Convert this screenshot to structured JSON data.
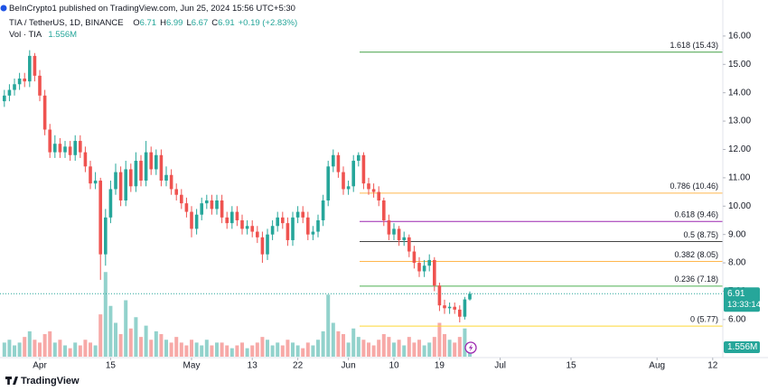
{
  "chart_data": {
    "type": "candlestick",
    "header": {
      "publisher": "BeInCrypto1 published on TradingView.com, Jun 25, 2024 15:56 UTC+5:30",
      "symbol": "TIA / TetherUS, 1D, BINANCE",
      "ohlc": [
        {
          "key": "O",
          "value": "6.71"
        },
        {
          "key": "H",
          "value": "6.99"
        },
        {
          "key": "L",
          "value": "6.67"
        },
        {
          "key": "C",
          "value": "6.91"
        }
      ],
      "change": "+0.19 (+2.83%)",
      "volume_title": "Vol · TIA",
      "volume_last": "1.556M"
    },
    "up_color": "#26a69a",
    "down_color": "#ef5350",
    "x": [
      -7,
      -6,
      -5,
      -4,
      -3,
      -2,
      -1,
      0,
      1,
      2,
      3,
      4,
      5,
      6,
      7,
      8,
      9,
      10,
      11,
      12,
      13,
      14,
      15,
      16,
      17,
      18,
      19,
      20,
      21,
      22,
      23,
      24,
      25,
      26,
      27,
      28,
      29,
      30,
      31,
      32,
      33,
      34,
      35,
      36,
      37,
      38,
      39,
      40,
      41,
      42,
      43,
      44,
      45,
      46,
      47,
      48,
      49,
      50,
      51,
      52,
      53,
      54,
      55,
      56,
      57,
      58,
      59,
      60,
      61,
      62,
      63,
      64,
      65,
      66,
      67,
      68,
      69,
      70,
      71,
      72,
      73,
      74,
      75,
      76,
      77,
      78,
      79,
      80,
      81,
      82,
      83,
      84,
      85
    ],
    "open": [
      13.7,
      13.9,
      14.1,
      14.3,
      14.5,
      14.4,
      15.3,
      14.6,
      13.9,
      12.7,
      11.9,
      12.2,
      11.9,
      12.1,
      11.8,
      12.3,
      11.9,
      11.4,
      10.8,
      10.9,
      8.3,
      9.6,
      10.6,
      11.2,
      10.2,
      11.3,
      10.7,
      11.6,
      10.9,
      11.9,
      11.3,
      11.8,
      10.9,
      11.1,
      10.6,
      10.4,
      10.1,
      9.8,
      9.2,
      9.7,
      10.1,
      10.2,
      9.9,
      10.2,
      9.6,
      9.4,
      9.8,
      9.5,
      9.2,
      9.3,
      9.1,
      8.9,
      8.3,
      9.0,
      9.3,
      9.6,
      9.4,
      8.8,
      9.6,
      9.8,
      9.6,
      9.0,
      9.1,
      9.5,
      10.2,
      11.4,
      11.8,
      11.2,
      10.6,
      10.7,
      11.6,
      11.8,
      10.8,
      10.6,
      10.5,
      10.2,
      9.5,
      9.0,
      9.2,
      8.8,
      8.9,
      8.4,
      8.0,
      7.7,
      7.9,
      8.1,
      7.2,
      6.5,
      6.4,
      6.45,
      6.35,
      6.1,
      6.71
    ],
    "high": [
      14.1,
      14.3,
      14.5,
      14.7,
      14.7,
      15.5,
      15.4,
      14.8,
      14.1,
      12.9,
      12.5,
      12.4,
      12.3,
      12.3,
      12.5,
      12.5,
      12.1,
      11.6,
      11.2,
      11.0,
      9.9,
      10.9,
      11.5,
      11.4,
      11.6,
      11.5,
      11.9,
      11.8,
      12.3,
      12.1,
      12.0,
      12.0,
      11.4,
      11.3,
      10.8,
      10.6,
      10.3,
      10.0,
      9.9,
      10.3,
      10.4,
      10.4,
      10.4,
      10.4,
      9.8,
      10.0,
      10.0,
      9.7,
      9.5,
      9.5,
      9.3,
      9.1,
      9.2,
      9.5,
      9.8,
      9.8,
      9.6,
      9.8,
      10.0,
      10.0,
      9.8,
      9.3,
      9.7,
      10.4,
      11.6,
      12.0,
      11.9,
      11.4,
      10.9,
      11.8,
      11.9,
      11.9,
      11.0,
      10.8,
      10.7,
      10.3,
      9.7,
      9.4,
      9.3,
      9.1,
      9.0,
      8.6,
      8.2,
      8.1,
      8.3,
      8.2,
      7.3,
      6.7,
      6.6,
      6.6,
      6.5,
      6.8,
      6.99
    ],
    "low": [
      13.5,
      13.7,
      13.9,
      14.1,
      14.2,
      14.2,
      14.4,
      13.7,
      12.5,
      11.7,
      11.7,
      11.7,
      11.7,
      11.6,
      11.6,
      11.7,
      11.2,
      10.6,
      10.6,
      7.4,
      7.9,
      9.4,
      10.4,
      10.0,
      10.0,
      10.5,
      10.5,
      10.7,
      10.7,
      11.1,
      11.1,
      10.7,
      10.7,
      10.4,
      10.2,
      9.9,
      9.6,
      8.9,
      9.0,
      9.5,
      9.9,
      9.7,
      9.7,
      9.4,
      9.2,
      9.2,
      9.3,
      9.0,
      9.0,
      8.9,
      8.7,
      8.0,
      8.1,
      8.8,
      9.1,
      9.2,
      8.6,
      8.6,
      9.4,
      9.4,
      8.8,
      8.8,
      8.9,
      9.3,
      10.0,
      11.2,
      11.0,
      10.4,
      10.4,
      10.5,
      11.4,
      10.6,
      10.4,
      10.3,
      10.0,
      9.3,
      8.8,
      8.8,
      8.6,
      8.6,
      8.2,
      7.8,
      7.5,
      7.5,
      7.7,
      7.0,
      6.3,
      6.2,
      6.2,
      6.2,
      5.9,
      6.0,
      6.67
    ],
    "close": [
      13.9,
      14.1,
      14.3,
      14.5,
      14.4,
      15.3,
      14.6,
      13.9,
      12.7,
      11.9,
      12.2,
      11.9,
      12.1,
      11.8,
      12.3,
      11.9,
      11.4,
      10.8,
      10.9,
      8.3,
      9.6,
      10.6,
      11.2,
      10.2,
      11.3,
      10.7,
      11.6,
      10.9,
      11.9,
      11.3,
      11.8,
      10.9,
      11.1,
      10.6,
      10.4,
      10.1,
      9.8,
      9.2,
      9.7,
      10.1,
      10.2,
      9.9,
      10.2,
      9.6,
      9.4,
      9.8,
      9.5,
      9.2,
      9.3,
      9.1,
      8.9,
      8.3,
      9.0,
      9.3,
      9.6,
      9.4,
      8.8,
      9.6,
      9.8,
      9.6,
      9.0,
      9.1,
      9.5,
      10.2,
      11.4,
      11.8,
      11.2,
      10.6,
      10.7,
      11.6,
      11.8,
      10.8,
      10.6,
      10.5,
      10.2,
      9.5,
      9.0,
      9.2,
      8.8,
      8.9,
      8.4,
      8.0,
      7.7,
      7.9,
      8.1,
      7.2,
      6.5,
      6.4,
      6.45,
      6.35,
      6.1,
      6.71,
      6.91
    ],
    "volume": [
      5,
      6,
      4,
      5,
      7,
      9,
      6,
      5,
      8,
      9,
      5,
      6,
      4,
      3,
      5,
      4,
      6,
      5,
      4,
      15,
      30,
      18,
      12,
      8,
      20,
      10,
      14,
      7,
      11,
      6,
      9,
      8,
      6,
      5,
      7,
      5,
      4,
      6,
      5,
      4,
      6,
      4,
      5,
      5,
      4,
      3,
      4,
      5,
      3,
      4,
      5,
      7,
      6,
      4,
      5,
      4,
      6,
      5,
      4,
      3,
      5,
      4,
      6,
      9,
      22,
      12,
      9,
      8,
      5,
      10,
      7,
      6,
      5,
      4,
      6,
      8,
      7,
      5,
      6,
      4,
      7,
      5,
      6,
      4,
      5,
      7,
      12,
      8,
      6,
      5,
      7,
      10,
      1.556
    ],
    "volume_ylim": [
      0,
      40
    ],
    "xlim": [
      -7.86,
      135
    ],
    "xticks": [
      {
        "value": 0,
        "label": "Apr"
      },
      {
        "value": 14,
        "label": "15"
      },
      {
        "value": 30,
        "label": "May"
      },
      {
        "value": 42,
        "label": "13"
      },
      {
        "value": 51,
        "label": "22"
      },
      {
        "value": 61,
        "label": "Jun"
      },
      {
        "value": 70,
        "label": "10"
      },
      {
        "value": 79,
        "label": "19"
      },
      {
        "value": 91,
        "label": "Jul"
      },
      {
        "value": 105,
        "label": "15"
      },
      {
        "value": 122,
        "label": "Aug"
      },
      {
        "value": 133,
        "label": "12"
      }
    ],
    "ylim": [
      4.69,
      16.57
    ],
    "yticks": [
      {
        "value": 6,
        "label": "6.00"
      },
      {
        "value": 7,
        "label": "7.00"
      },
      {
        "value": 8,
        "label": "8.00"
      },
      {
        "value": 9,
        "label": "9.00"
      },
      {
        "value": 10,
        "label": "10.00"
      },
      {
        "value": 11,
        "label": "11.00"
      },
      {
        "value": 12,
        "label": "12.00"
      },
      {
        "value": 13,
        "label": "13.00"
      },
      {
        "value": 14,
        "label": "14.00"
      },
      {
        "value": 15,
        "label": "15.00"
      },
      {
        "value": 16,
        "label": "16.00"
      }
    ],
    "grid": false,
    "fib_levels": [
      {
        "label": "1.618 (15.43)",
        "value": 15.43,
        "color": "#43a047"
      },
      {
        "label": "0.786 (10.46)",
        "value": 10.46,
        "color": "#ffb74d"
      },
      {
        "label": "0.618 (9.46)",
        "value": 9.46,
        "color": "#9c27b0"
      },
      {
        "label": "0.5 (8.75)",
        "value": 8.75,
        "color": "#444444"
      },
      {
        "label": "0.382 (8.05)",
        "value": 8.05,
        "color": "#ffb74d"
      },
      {
        "label": "0.236 (7.18)",
        "value": 7.18,
        "color": "#4caf50"
      },
      {
        "label": "0 (5.77)",
        "value": 5.77,
        "color": "#fdd835"
      }
    ],
    "last_price": 6.91,
    "countdown": "13:33:14",
    "footer": "TradingView"
  }
}
